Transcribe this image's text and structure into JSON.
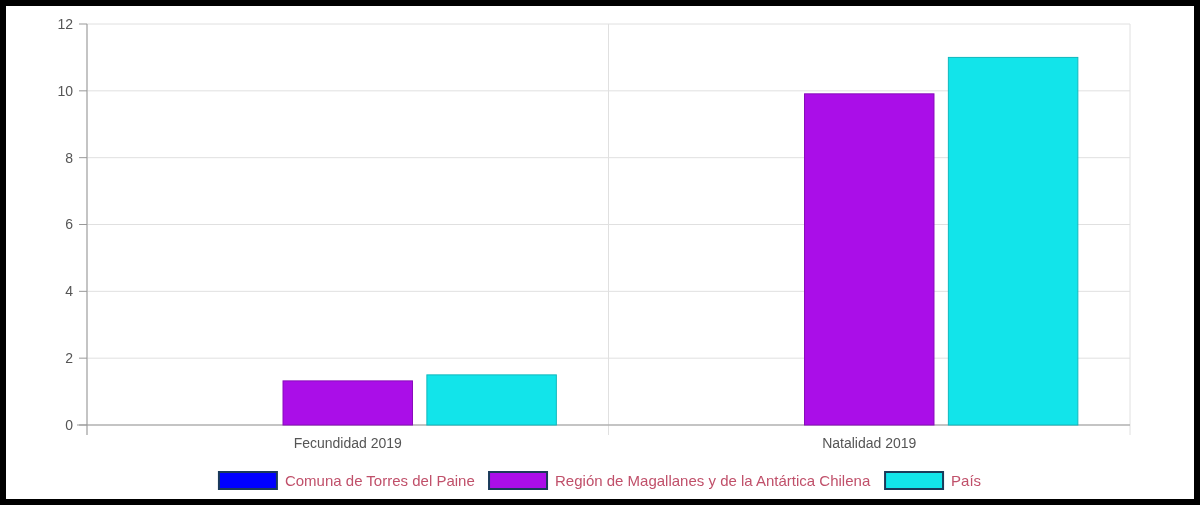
{
  "chart_data": {
    "type": "bar",
    "categories": [
      "Fecundidad 2019",
      "Natalidad 2019"
    ],
    "series": [
      {
        "name": "Comuna de Torres del Paine",
        "color": "#0000ff",
        "values": [
          0,
          0
        ]
      },
      {
        "name": "Región de Magallanes y de la Antártica Chilena",
        "color": "#aa0ee8",
        "values": [
          1.32,
          9.91
        ]
      },
      {
        "name": "País",
        "color": "#12e4ea",
        "values": [
          1.5,
          11.0
        ]
      }
    ],
    "ylim": [
      0,
      12
    ],
    "yticks": [
      0,
      2,
      4,
      6,
      8,
      10,
      12
    ],
    "grid": true,
    "legend": "bottom"
  }
}
